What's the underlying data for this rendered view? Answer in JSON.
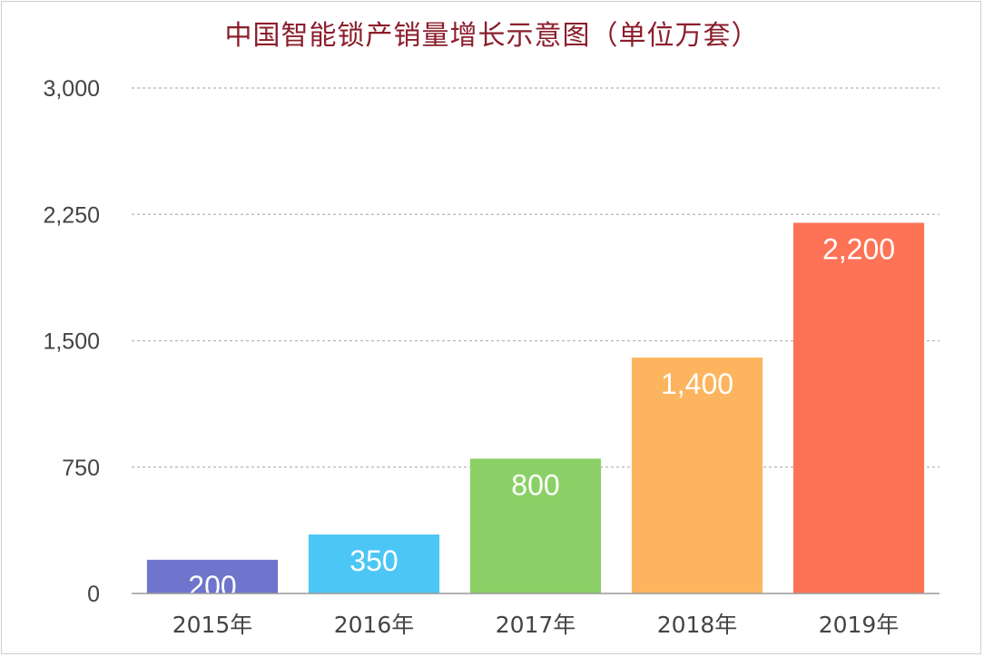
{
  "chart_data": {
    "type": "bar",
    "title": "中国智能锁产销量增长示意图（单位万套）",
    "categories": [
      "2015年",
      "2016年",
      "2017年",
      "2018年",
      "2019年"
    ],
    "values": [
      200,
      350,
      800,
      1400,
      2200
    ],
    "value_labels": [
      "200",
      "350",
      "800",
      "1,400",
      "2,200"
    ],
    "colors": [
      "#6f74cc",
      "#4cc6f5",
      "#8bd066",
      "#fcb55e",
      "#fe7356"
    ],
    "ylim": [
      0,
      3000
    ],
    "y_ticks": [
      0,
      750,
      1500,
      2250,
      3000
    ],
    "y_tick_labels": [
      "0",
      "750",
      "1,500",
      "2,250",
      "3,000"
    ],
    "grid": true,
    "xlabel": "",
    "ylabel": ""
  }
}
